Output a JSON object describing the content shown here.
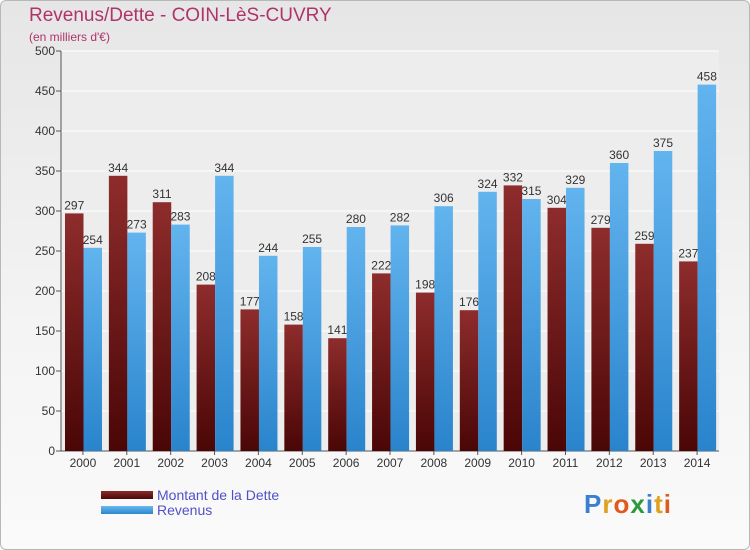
{
  "header": {
    "title": "Revenus/Dette - COIN-LèS-CUVRY",
    "subtitle": "(en milliers d'€)"
  },
  "chart_data": {
    "type": "bar",
    "title": "Revenus/Dette - COIN-LèS-CUVRY",
    "subtitle": "(en milliers d'€)",
    "categories": [
      "2000",
      "2001",
      "2002",
      "2003",
      "2004",
      "2005",
      "2006",
      "2007",
      "2008",
      "2009",
      "2010",
      "2011",
      "2012",
      "2013",
      "2014"
    ],
    "series": [
      {
        "name": "Montant de la Dette",
        "color": "#7a1c1c",
        "values": [
          297,
          344,
          311,
          208,
          177,
          158,
          141,
          222,
          198,
          176,
          332,
          304,
          279,
          259,
          237
        ]
      },
      {
        "name": "Revenus",
        "color": "#3a9be0",
        "values": [
          254,
          273,
          283,
          344,
          244,
          255,
          280,
          282,
          306,
          324,
          315,
          329,
          360,
          375,
          458
        ]
      }
    ],
    "yticks": [
      0,
      50,
      100,
      150,
      200,
      250,
      300,
      350,
      400,
      450,
      500
    ],
    "ylim": [
      0,
      500
    ],
    "grid": true,
    "legend": "bottom-left"
  },
  "legend": {
    "items": [
      "Montant de la Dette",
      "Revenus"
    ]
  },
  "logo": {
    "text": [
      "P",
      "r",
      "o",
      "x",
      "i",
      "t",
      "i"
    ],
    "colors": [
      "#3a7fd0",
      "#e0a020",
      "#e05a20",
      "#2a9a3a",
      "#3a7fd0",
      "#e0a020",
      "#e05a20"
    ]
  }
}
